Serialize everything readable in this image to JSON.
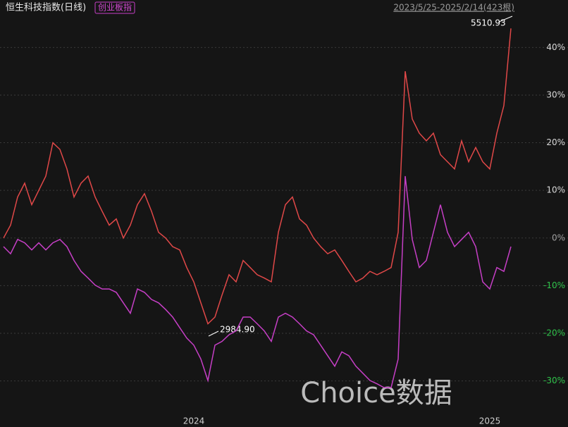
{
  "chart_data": {
    "type": "line",
    "title": "恒生科技指数(日线)",
    "badge": "创业板指",
    "range": "2023/5/25-2025/2/14(423根)",
    "watermark": "Choice数据",
    "annotations": [
      "5510.93",
      "2984.90"
    ],
    "categories": [
      null,
      null,
      null,
      null,
      null,
      null,
      null,
      null,
      null,
      null,
      null,
      null,
      null,
      null,
      null,
      null,
      null,
      null,
      null,
      null,
      null,
      null,
      null,
      null,
      null,
      null,
      null,
      "2024",
      null,
      null,
      null,
      null,
      null,
      null,
      null,
      null,
      null,
      null,
      null,
      null,
      null,
      null,
      null,
      null,
      null,
      null,
      null,
      null,
      null,
      null,
      null,
      null,
      null,
      null,
      null,
      null,
      null,
      null,
      null,
      null,
      null,
      null,
      null,
      null,
      null,
      null,
      null,
      null,
      null,
      "2025",
      null,
      null,
      null
    ],
    "series": [
      {
        "name": "恒生科技指数",
        "color": "#e04848",
        "values": [
          0,
          2.7,
          8.6,
          11.5,
          7,
          10,
          13,
          20,
          18.6,
          14.5,
          8.6,
          11.5,
          13,
          8.6,
          5.6,
          2.7,
          4,
          0,
          2.7,
          7,
          9.3,
          5.6,
          1.2,
          0,
          -1.8,
          -2.5,
          -6.2,
          -9.2,
          -13.6,
          -18,
          -16.6,
          -12,
          -7.7,
          -9.2,
          -4.7,
          -6.2,
          -7.7,
          -8.4,
          -9.2,
          1.2,
          7,
          8.6,
          4,
          2.7,
          0,
          -1.8,
          -3.3,
          -2.5,
          -4.7,
          -7,
          -9.2,
          -8.4,
          -7,
          -7.7,
          -7,
          -6.2,
          1.2,
          35,
          25,
          22,
          20.4,
          22,
          17.5,
          16,
          14.5,
          20.4,
          16,
          19,
          16,
          14.5,
          22,
          27.8,
          44
        ]
      },
      {
        "name": "创业板指",
        "color": "#c63fc6",
        "values": [
          -1.8,
          -3.3,
          -0.3,
          -1,
          -2.5,
          -1,
          -2.5,
          -1,
          -0.3,
          -1.8,
          -4.7,
          -7,
          -8.4,
          -9.9,
          -10.7,
          -10.7,
          -11.4,
          -13.6,
          -15.8,
          -10.7,
          -11.4,
          -12.9,
          -13.6,
          -15,
          -16.6,
          -18.8,
          -21,
          -22.5,
          -25.4,
          -29.9,
          -22.5,
          -21.7,
          -20.3,
          -19.5,
          -16.6,
          -16.6,
          -18,
          -19.5,
          -21.7,
          -16.6,
          -15.8,
          -16.6,
          -18,
          -19.5,
          -20.3,
          -22.5,
          -24.7,
          -26.9,
          -23.9,
          -24.7,
          -26.9,
          -28.4,
          -29.9,
          -30.6,
          -31.4,
          -31.4,
          -25.4,
          13,
          -0.3,
          -6.2,
          -4.7,
          1.2,
          7,
          1.2,
          -1.8,
          -0.3,
          1.2,
          -1.8,
          -9.2,
          -10.7,
          -6.2,
          -7,
          -1.8
        ]
      }
    ],
    "ylim": [
      -37.3,
      47
    ],
    "yticks": [
      {
        "value": 40,
        "label": "40%"
      },
      {
        "value": 30,
        "label": "30%"
      },
      {
        "value": 20,
        "label": "20%"
      },
      {
        "value": 10,
        "label": "10%"
      },
      {
        "value": 0,
        "label": "0%"
      },
      {
        "value": -10,
        "label": "-10%"
      },
      {
        "value": -20,
        "label": "-20%"
      },
      {
        "value": -30,
        "label": "-30%"
      }
    ],
    "grid": true
  }
}
